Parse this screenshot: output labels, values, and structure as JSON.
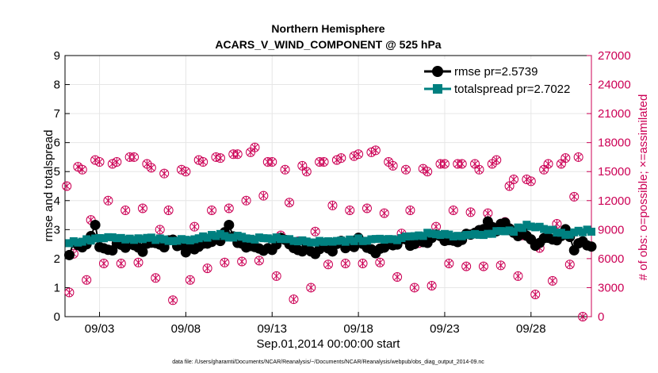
{
  "chart_data": {
    "type": "line",
    "title_line1": "Northern Hemisphere",
    "title_line2": "ACARS_V_WIND_COMPONENT @ 525 hPa",
    "xlabel": "Sep.01,2014 00:00:00 start",
    "ylabel_left": "rmse and totalspread",
    "ylabel_right": "# of obs: o=possible; ×=assimilated",
    "footnote": "data file: /Users/gharamti/Documents/NCAR/Reanalysis/~/Documents/NCAR/Reanalysis/webpub/obs_diag_output_2014-09.nc",
    "x_range_days": [
      1.0,
      31.5
    ],
    "x_ticks": [
      {
        "day": 3,
        "label": "09/03"
      },
      {
        "day": 8,
        "label": "09/08"
      },
      {
        "day": 13,
        "label": "09/13"
      },
      {
        "day": 18,
        "label": "09/18"
      },
      {
        "day": 23,
        "label": "09/23"
      },
      {
        "day": 28,
        "label": "09/28"
      }
    ],
    "ylim_left": [
      0,
      9
    ],
    "yticks_left": [
      "0",
      "1",
      "2",
      "3",
      "4",
      "5",
      "6",
      "7",
      "8",
      "9"
    ],
    "ylim_right": [
      0,
      27000
    ],
    "yticks_right": [
      "0",
      "3000",
      "6000",
      "9000",
      "12000",
      "15000",
      "18000",
      "21000",
      "24000",
      "27000"
    ],
    "legend": [
      {
        "label": "rmse pr=2.5739",
        "color": "#000000",
        "marker": "circle"
      },
      {
        "label": "totalspread pr=2.7022",
        "color": "#008080",
        "marker": "square"
      }
    ],
    "colors": {
      "rmse": "#000000",
      "spread": "#008080",
      "obs": "#cc0055"
    },
    "rmse_knots": [
      [
        1.25,
        2.2
      ],
      [
        1.5,
        2.5
      ],
      [
        2,
        2.4
      ],
      [
        2.5,
        2.7
      ],
      [
        2.75,
        3.1
      ],
      [
        3,
        2.4
      ],
      [
        3.5,
        2.3
      ],
      [
        4,
        2.5
      ],
      [
        4.5,
        2.4
      ],
      [
        5,
        2.5
      ],
      [
        5.5,
        2.3
      ],
      [
        6,
        2.5
      ],
      [
        6.5,
        2.4
      ],
      [
        7,
        2.6
      ],
      [
        7.5,
        2.5
      ],
      [
        8,
        2.3
      ],
      [
        8.5,
        2.4
      ],
      [
        9,
        2.5
      ],
      [
        9.5,
        2.6
      ],
      [
        10,
        2.7
      ],
      [
        10.5,
        3.05
      ],
      [
        11,
        2.6
      ],
      [
        11.5,
        2.3
      ],
      [
        12,
        2.5
      ],
      [
        12.5,
        2.2
      ],
      [
        13,
        2.4
      ],
      [
        13.5,
        2.6
      ],
      [
        14,
        2.5
      ],
      [
        14.5,
        2.3
      ],
      [
        15,
        2.4
      ],
      [
        15.5,
        2.2
      ],
      [
        16,
        2.4
      ],
      [
        16.5,
        2.3
      ],
      [
        17,
        2.5
      ],
      [
        17.5,
        2.4
      ],
      [
        18,
        2.6
      ],
      [
        18.5,
        2.4
      ],
      [
        19,
        2.2
      ],
      [
        19.5,
        2.5
      ],
      [
        20,
        2.5
      ],
      [
        20.5,
        2.6
      ],
      [
        21,
        2.5
      ],
      [
        21.5,
        2.7
      ],
      [
        22,
        2.5
      ],
      [
        22.5,
        2.8
      ],
      [
        23,
        2.7
      ],
      [
        23.5,
        2.6
      ],
      [
        24,
        2.7
      ],
      [
        24.5,
        2.8
      ],
      [
        25,
        2.9
      ],
      [
        25.5,
        3.2
      ],
      [
        26,
        3.0
      ],
      [
        26.5,
        3.35
      ],
      [
        27,
        2.8
      ],
      [
        27.5,
        2.9
      ],
      [
        28,
        2.6
      ],
      [
        28.5,
        2.5
      ],
      [
        29,
        2.7
      ],
      [
        29.5,
        2.6
      ],
      [
        30,
        2.9
      ],
      [
        30.5,
        2.4
      ],
      [
        31,
        2.5
      ],
      [
        31.5,
        2.5
      ]
    ],
    "spread_knots": [
      [
        1.25,
        2.55
      ],
      [
        2,
        2.6
      ],
      [
        2.5,
        2.65
      ],
      [
        3,
        2.7
      ],
      [
        4,
        2.7
      ],
      [
        5,
        2.65
      ],
      [
        6,
        2.7
      ],
      [
        7,
        2.6
      ],
      [
        8,
        2.65
      ],
      [
        9,
        2.75
      ],
      [
        10,
        2.8
      ],
      [
        11,
        2.75
      ],
      [
        12,
        2.7
      ],
      [
        13,
        2.7
      ],
      [
        14,
        2.65
      ],
      [
        15,
        2.6
      ],
      [
        16,
        2.55
      ],
      [
        17,
        2.6
      ],
      [
        18,
        2.65
      ],
      [
        19,
        2.65
      ],
      [
        20,
        2.65
      ],
      [
        21,
        2.75
      ],
      [
        22,
        2.85
      ],
      [
        23,
        2.8
      ],
      [
        24,
        2.8
      ],
      [
        25,
        2.85
      ],
      [
        26,
        2.9
      ],
      [
        27,
        2.95
      ],
      [
        27.5,
        3.1
      ],
      [
        28,
        3.15
      ],
      [
        29,
        3.0
      ],
      [
        30,
        2.85
      ],
      [
        31,
        2.95
      ],
      [
        31.5,
        2.95
      ]
    ],
    "obs_points": [
      [
        1.1,
        13500
      ],
      [
        1.25,
        2500
      ],
      [
        1.5,
        6500
      ],
      [
        1.75,
        15500
      ],
      [
        2,
        15200
      ],
      [
        2.25,
        3800
      ],
      [
        2.5,
        10000
      ],
      [
        2.75,
        16200
      ],
      [
        3,
        16000
      ],
      [
        3.25,
        5500
      ],
      [
        3.5,
        12000
      ],
      [
        3.75,
        15800
      ],
      [
        4,
        16000
      ],
      [
        4.25,
        5500
      ],
      [
        4.5,
        11000
      ],
      [
        4.75,
        16500
      ],
      [
        5,
        16500
      ],
      [
        5.25,
        5600
      ],
      [
        5.5,
        11200
      ],
      [
        5.75,
        15800
      ],
      [
        6,
        15400
      ],
      [
        6.25,
        4000
      ],
      [
        6.5,
        9000
      ],
      [
        6.75,
        14800
      ],
      [
        7,
        11000
      ],
      [
        7.25,
        1700
      ],
      [
        7.5,
        7500
      ],
      [
        7.75,
        15200
      ],
      [
        8,
        15000
      ],
      [
        8.25,
        3800
      ],
      [
        8.5,
        9300
      ],
      [
        8.75,
        16200
      ],
      [
        9,
        16000
      ],
      [
        9.25,
        5000
      ],
      [
        9.5,
        11000
      ],
      [
        9.75,
        16500
      ],
      [
        10,
        16400
      ],
      [
        10.25,
        5600
      ],
      [
        10.5,
        11200
      ],
      [
        10.75,
        16800
      ],
      [
        11,
        16800
      ],
      [
        11.25,
        5700
      ],
      [
        11.5,
        12000
      ],
      [
        11.75,
        17000
      ],
      [
        12,
        17500
      ],
      [
        12.25,
        5800
      ],
      [
        12.5,
        12500
      ],
      [
        12.75,
        16000
      ],
      [
        13,
        16000
      ],
      [
        13.25,
        4200
      ],
      [
        13.5,
        8400
      ],
      [
        13.75,
        15200
      ],
      [
        14,
        11800
      ],
      [
        14.25,
        1800
      ],
      [
        14.5,
        7800
      ],
      [
        14.75,
        15600
      ],
      [
        15,
        15000
      ],
      [
        15.25,
        3000
      ],
      [
        15.5,
        8800
      ],
      [
        15.75,
        16000
      ],
      [
        16,
        16000
      ],
      [
        16.25,
        5400
      ],
      [
        16.5,
        11500
      ],
      [
        16.75,
        16200
      ],
      [
        17,
        16400
      ],
      [
        17.25,
        5500
      ],
      [
        17.5,
        11000
      ],
      [
        17.75,
        16600
      ],
      [
        18,
        16800
      ],
      [
        18.25,
        5500
      ],
      [
        18.5,
        11200
      ],
      [
        18.75,
        17000
      ],
      [
        19,
        17200
      ],
      [
        19.25,
        5600
      ],
      [
        19.5,
        10700
      ],
      [
        19.75,
        16000
      ],
      [
        20,
        15600
      ],
      [
        20.25,
        4100
      ],
      [
        20.5,
        8600
      ],
      [
        20.75,
        15200
      ],
      [
        21,
        11000
      ],
      [
        21.25,
        3000
      ],
      [
        21.5,
        7600
      ],
      [
        21.75,
        15300
      ],
      [
        22,
        15000
      ],
      [
        22.25,
        3200
      ],
      [
        22.5,
        9300
      ],
      [
        22.75,
        15800
      ],
      [
        23,
        15800
      ],
      [
        23.25,
        5500
      ],
      [
        23.5,
        11000
      ],
      [
        23.75,
        15800
      ],
      [
        24,
        15800
      ],
      [
        24.25,
        5200
      ],
      [
        24.5,
        10800
      ],
      [
        24.75,
        15800
      ],
      [
        25,
        15200
      ],
      [
        25.25,
        5200
      ],
      [
        25.5,
        10700
      ],
      [
        25.75,
        15800
      ],
      [
        26,
        16200
      ],
      [
        26.25,
        5300
      ],
      [
        26.5,
        9800
      ],
      [
        26.75,
        13500
      ],
      [
        27,
        14200
      ],
      [
        27.25,
        4200
      ],
      [
        27.5,
        8400
      ],
      [
        27.75,
        14200
      ],
      [
        28,
        14000
      ],
      [
        28.25,
        2300
      ],
      [
        28.5,
        7100
      ],
      [
        28.75,
        15200
      ],
      [
        29,
        15800
      ],
      [
        29.25,
        3700
      ],
      [
        29.5,
        9600
      ],
      [
        29.75,
        15800
      ],
      [
        30,
        16400
      ],
      [
        30.25,
        5400
      ],
      [
        30.5,
        12400
      ],
      [
        30.75,
        16500
      ],
      [
        31,
        0
      ]
    ]
  }
}
